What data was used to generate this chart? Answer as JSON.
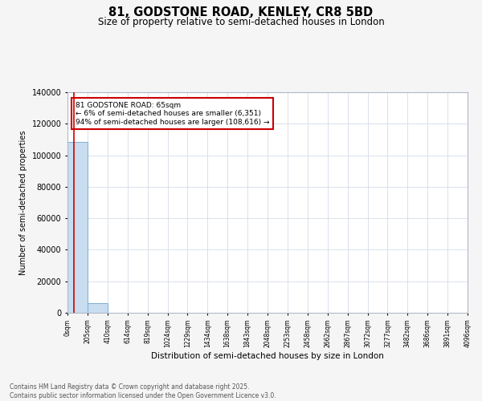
{
  "title": "81, GODSTONE ROAD, KENLEY, CR8 5BD",
  "subtitle": "Size of property relative to semi-detached houses in London",
  "xlabel": "Distribution of semi-detached houses by size in London",
  "ylabel": "Number of semi-detached properties",
  "bar_color": "#c8ddf0",
  "bar_edge_color": "#7bafd4",
  "bar_heights": [
    108616,
    6351,
    0,
    0,
    0,
    0,
    0,
    0,
    0,
    0,
    0,
    0,
    0,
    0,
    0,
    0,
    0,
    0,
    0,
    0
  ],
  "bin_edges": [
    0,
    205,
    410,
    614,
    819,
    1024,
    1229,
    1434,
    1638,
    1843,
    2048,
    2253,
    2458,
    2662,
    2867,
    3072,
    3277,
    3482,
    3686,
    3891,
    4096
  ],
  "tick_labels": [
    "0sqm",
    "205sqm",
    "410sqm",
    "614sqm",
    "819sqm",
    "1024sqm",
    "1229sqm",
    "1434sqm",
    "1638sqm",
    "1843sqm",
    "2048sqm",
    "2253sqm",
    "2458sqm",
    "2662sqm",
    "2867sqm",
    "3072sqm",
    "3277sqm",
    "3482sqm",
    "3686sqm",
    "3891sqm",
    "4096sqm"
  ],
  "property_size": 65,
  "red_line_color": "#cc0000",
  "annotation_text": "81 GODSTONE ROAD: 65sqm\n← 6% of semi-detached houses are smaller (6,351)\n94% of semi-detached houses are larger (108,616) →",
  "annotation_box_color": "#cc0000",
  "ylim": [
    0,
    140000
  ],
  "yticks": [
    0,
    20000,
    40000,
    60000,
    80000,
    100000,
    120000,
    140000
  ],
  "ytick_labels": [
    "0",
    "20000",
    "40000",
    "60000",
    "80000",
    "100000",
    "120000",
    "140000"
  ],
  "footer_text": "Contains HM Land Registry data © Crown copyright and database right 2025.\nContains public sector information licensed under the Open Government Licence v3.0.",
  "background_color": "#f5f5f5",
  "plot_background": "#ffffff",
  "grid_color": "#d5dde8"
}
